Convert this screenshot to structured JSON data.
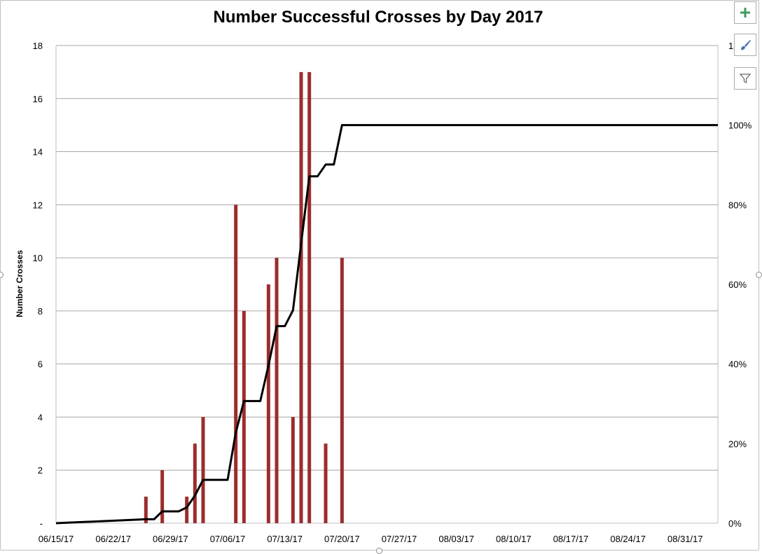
{
  "chart_data": {
    "type": "bar",
    "title": "Number Successful Crosses by Day 2017",
    "ylabel": "Number Crosses",
    "xlabel": "",
    "x_tick_labels": [
      "06/15/17",
      "06/22/17",
      "06/29/17",
      "07/06/17",
      "07/13/17",
      "07/20/17",
      "07/27/17",
      "08/03/17",
      "08/10/17",
      "08/17/17",
      "08/24/17",
      "08/31/17"
    ],
    "y_tick_labels": [
      "-",
      "2",
      "4",
      "6",
      "8",
      "10",
      "12",
      "14",
      "16",
      "18"
    ],
    "y2_tick_labels": [
      "0%",
      "20%",
      "40%",
      "60%",
      "80%",
      "100%"
    ],
    "y2_top_partial": "1",
    "ylim": [
      0,
      18
    ],
    "y2lim": [
      0,
      1.2
    ],
    "xlim": [
      "06/15/17",
      "09/04/17"
    ],
    "grid": true,
    "bar_color": "#9b2d2d",
    "line_color": "#000000",
    "bars": {
      "x": [
        "06/26/17",
        "06/28/17",
        "07/01/17",
        "07/02/17",
        "07/03/17",
        "07/07/17",
        "07/08/17",
        "07/11/17",
        "07/12/17",
        "07/14/17",
        "07/15/17",
        "07/16/17",
        "07/18/17",
        "07/20/17"
      ],
      "values": [
        1,
        2,
        1,
        3,
        4,
        12,
        8,
        9,
        10,
        4,
        17,
        17,
        3,
        10
      ]
    },
    "cumulative_line": {
      "x": [
        "06/15/17",
        "06/26/17",
        "06/27/17",
        "06/28/17",
        "06/30/17",
        "07/01/17",
        "07/02/17",
        "07/03/17",
        "07/06/17",
        "07/07/17",
        "07/08/17",
        "07/10/17",
        "07/11/17",
        "07/12/17",
        "07/13/17",
        "07/14/17",
        "07/15/17",
        "07/16/17",
        "07/17/17",
        "07/18/17",
        "07/19/17",
        "07/20/17",
        "09/04/17"
      ],
      "values": [
        0,
        0.0099,
        0.0099,
        0.0297,
        0.0297,
        0.0396,
        0.0693,
        0.1089,
        0.1089,
        0.2277,
        0.3069,
        0.3069,
        0.396,
        0.495,
        0.495,
        0.5347,
        0.703,
        0.8713,
        0.8713,
        0.901,
        0.901,
        1.0,
        1.0
      ]
    }
  },
  "colors": {
    "tool_plus": "#3f9a5b",
    "gridline": "#a6a6a6",
    "axis_text": "#000000"
  },
  "tools": [
    {
      "icon": "plus-icon"
    },
    {
      "icon": "paintbrush-icon"
    },
    {
      "icon": "filter-icon"
    }
  ]
}
